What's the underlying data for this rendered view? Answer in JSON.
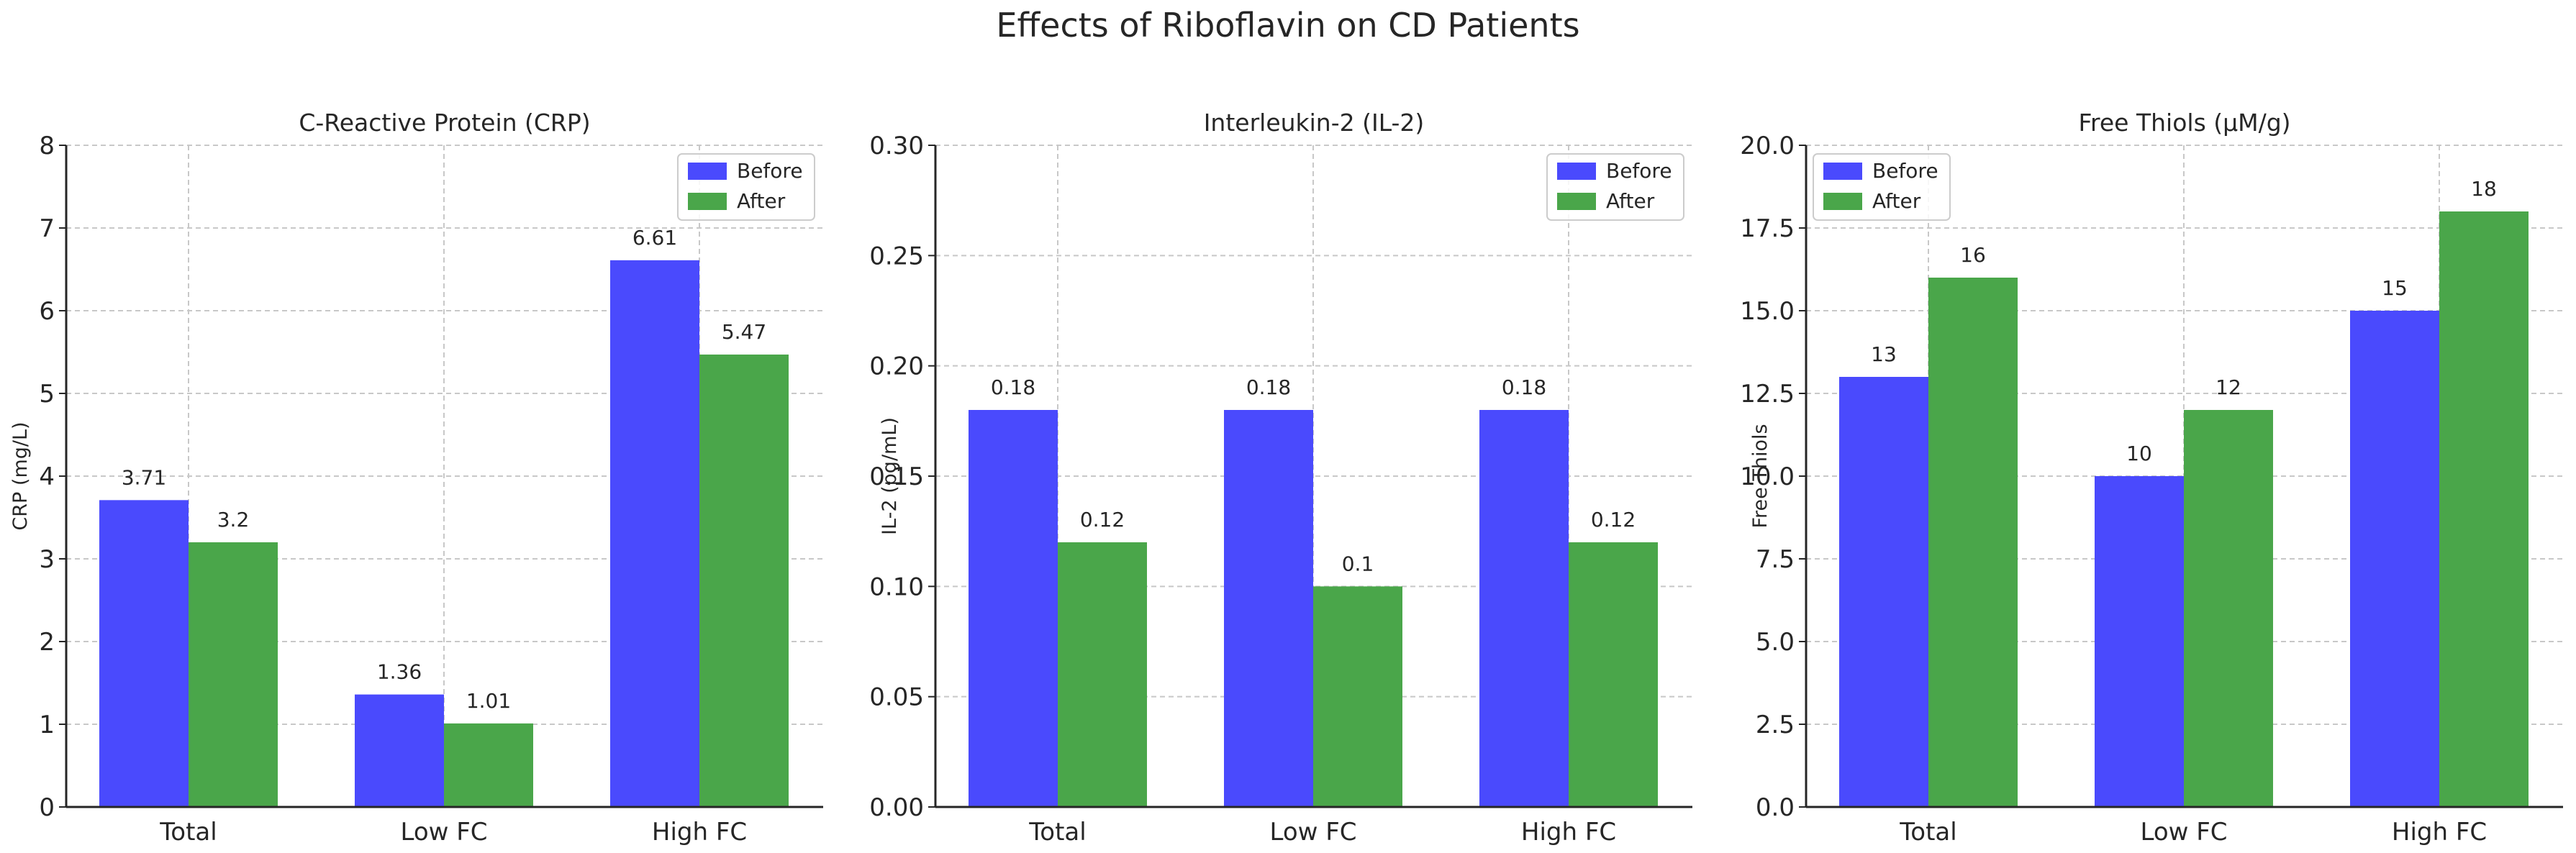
{
  "figure_title": "Effects of Riboflavin on CD Patients",
  "colors": {
    "before": "#4a4afd",
    "after": "#4aa64a",
    "grid": "#c8c8c8",
    "axis": "#262626"
  },
  "chart_data": [
    {
      "type": "bar",
      "title": "C-Reactive Protein (CRP)",
      "xlabel": "",
      "ylabel": "CRP (mg/L)",
      "categories": [
        "Total",
        "Low FC",
        "High FC"
      ],
      "series": [
        {
          "name": "Before",
          "values": [
            3.71,
            1.36,
            6.61
          ],
          "labels": [
            "3.71",
            "1.36",
            "6.61"
          ]
        },
        {
          "name": "After",
          "values": [
            3.2,
            1.01,
            5.47
          ],
          "labels": [
            "3.2",
            "1.01",
            "5.47"
          ]
        }
      ],
      "ylim": [
        0,
        8
      ],
      "yticks": [
        0,
        1,
        2,
        3,
        4,
        5,
        6,
        7,
        8
      ],
      "ytick_labels": [
        "0",
        "1",
        "2",
        "3",
        "4",
        "5",
        "6",
        "7",
        "8"
      ],
      "legend": "top-right",
      "grid": true
    },
    {
      "type": "bar",
      "title": "Interleukin-2 (IL-2)",
      "xlabel": "",
      "ylabel": "IL-2 (pg/mL)",
      "categories": [
        "Total",
        "Low FC",
        "High FC"
      ],
      "series": [
        {
          "name": "Before",
          "values": [
            0.18,
            0.18,
            0.18
          ],
          "labels": [
            "0.18",
            "0.18",
            "0.18"
          ]
        },
        {
          "name": "After",
          "values": [
            0.12,
            0.1,
            0.12
          ],
          "labels": [
            "0.12",
            "0.1",
            "0.12"
          ]
        }
      ],
      "ylim": [
        0,
        0.3
      ],
      "yticks": [
        0,
        0.05,
        0.1,
        0.15,
        0.2,
        0.25,
        0.3
      ],
      "ytick_labels": [
        "0.00",
        "0.05",
        "0.10",
        "0.15",
        "0.20",
        "0.25",
        "0.30"
      ],
      "legend": "top-right",
      "grid": true
    },
    {
      "type": "bar",
      "title": "Free Thiols (μM/g)",
      "xlabel": "",
      "ylabel": "Free Thiols",
      "categories": [
        "Total",
        "Low FC",
        "High FC"
      ],
      "series": [
        {
          "name": "Before",
          "values": [
            13,
            10,
            15
          ],
          "labels": [
            "13",
            "10",
            "15"
          ]
        },
        {
          "name": "After",
          "values": [
            16,
            12,
            18
          ],
          "labels": [
            "16",
            "12",
            "18"
          ]
        }
      ],
      "ylim": [
        0,
        20
      ],
      "yticks": [
        0,
        2.5,
        5,
        7.5,
        10,
        12.5,
        15,
        17.5,
        20
      ],
      "ytick_labels": [
        "0.0",
        "2.5",
        "5.0",
        "7.5",
        "10.0",
        "12.5",
        "15.0",
        "17.5",
        "20.0"
      ],
      "legend": "top-left",
      "grid": true
    }
  ]
}
